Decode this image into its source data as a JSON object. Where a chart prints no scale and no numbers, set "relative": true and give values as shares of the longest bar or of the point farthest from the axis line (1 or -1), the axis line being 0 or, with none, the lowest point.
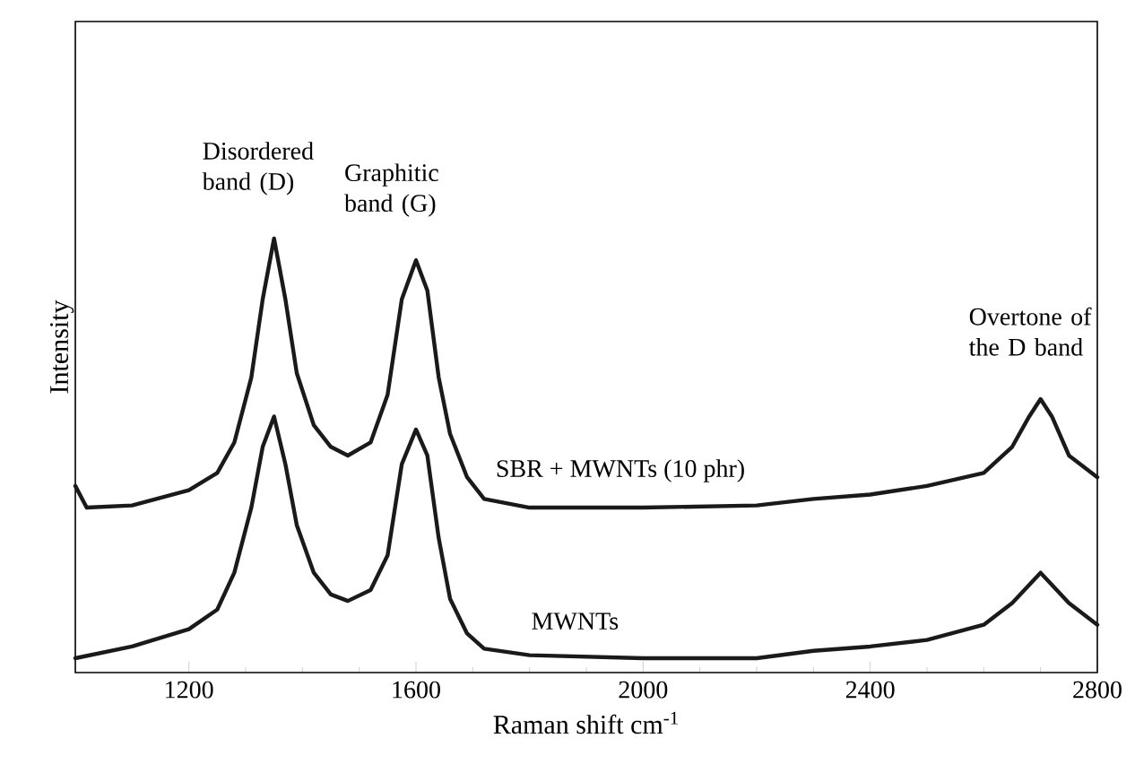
{
  "chart_data": {
    "type": "line",
    "relative": true,
    "xlabel": "Raman shift cm$^{-1}$",
    "ylabel": "Intensity",
    "xlim": [
      1000,
      2800
    ],
    "xticks": [
      1200,
      1600,
      2000,
      2400,
      2800
    ],
    "legend": false,
    "grid": false,
    "marker": "none",
    "line_style": "solid",
    "annotations": [
      {
        "text": "Disordered band (D)",
        "x": 1350,
        "y": 1
      },
      {
        "text": "Graphitic band (G)",
        "x": 1600,
        "y": 0.95
      },
      {
        "text": "Overtone of the D band",
        "x": 2700,
        "y": 0.63
      }
    ],
    "series": [
      {
        "name": "SBR + MWNTs (10 phr)",
        "color": "#1a1a1a",
        "x": [
          1000,
          1020,
          1100,
          1200,
          1250,
          1280,
          1310,
          1330,
          1350,
          1370,
          1390,
          1420,
          1450,
          1480,
          1520,
          1550,
          1575,
          1600,
          1620,
          1640,
          1660,
          1690,
          1720,
          1800,
          2000,
          2200,
          2300,
          2400,
          2500,
          2600,
          2650,
          2680,
          2700,
          2720,
          2750,
          2800
        ],
        "values": [
          0.43,
          0.38,
          0.385,
          0.42,
          0.46,
          0.53,
          0.68,
          0.86,
          1,
          0.86,
          0.69,
          0.57,
          0.52,
          0.5,
          0.53,
          0.64,
          0.86,
          0.95,
          0.88,
          0.68,
          0.55,
          0.45,
          0.4,
          0.38,
          0.38,
          0.385,
          0.4,
          0.41,
          0.43,
          0.46,
          0.52,
          0.59,
          0.63,
          0.59,
          0.5,
          0.45
        ]
      },
      {
        "name": "MWNTs",
        "color": "#1a1a1a",
        "x": [
          1000,
          1100,
          1200,
          1250,
          1280,
          1310,
          1330,
          1350,
          1370,
          1390,
          1420,
          1450,
          1480,
          1520,
          1550,
          1575,
          1600,
          1620,
          1640,
          1660,
          1690,
          1720,
          1800,
          2000,
          2200,
          2300,
          2400,
          2500,
          2600,
          2650,
          2700,
          2750,
          2800
        ],
        "values": [
          0.033,
          0.06,
          0.1,
          0.145,
          0.23,
          0.38,
          0.52,
          0.59,
          0.48,
          0.34,
          0.23,
          0.18,
          0.165,
          0.19,
          0.27,
          0.48,
          0.56,
          0.5,
          0.31,
          0.17,
          0.09,
          0.055,
          0.04,
          0.033,
          0.033,
          0.05,
          0.06,
          0.075,
          0.11,
          0.16,
          0.23,
          0.16,
          0.11
        ]
      }
    ]
  }
}
